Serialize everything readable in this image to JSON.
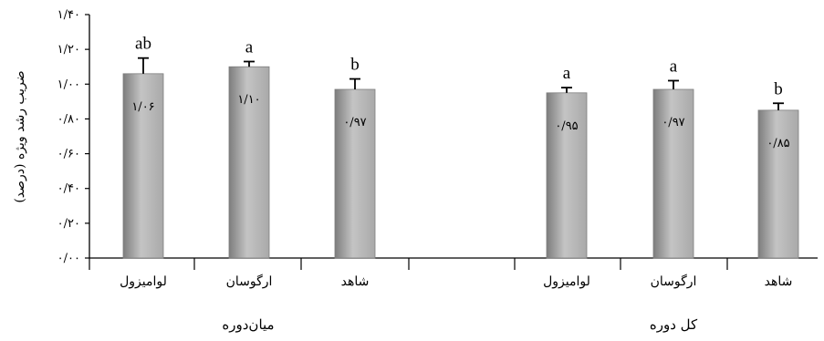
{
  "chart_data": {
    "type": "bar",
    "ylabel": "ضریب رشد ویژه (درصد)",
    "ylim": [
      0,
      1.4
    ],
    "yticks": [
      0,
      0.2,
      0.4,
      0.6,
      0.8,
      1.0,
      1.2,
      1.4
    ],
    "ytick_labels": [
      "۰/۰۰",
      "۰/۲۰",
      "۰/۴۰",
      "۰/۶۰",
      "۰/۸۰",
      "۱/۰۰",
      "۱/۲۰",
      "۱/۴۰"
    ],
    "groups": [
      {
        "label": "میان‌دوره",
        "bars": [
          {
            "category": "لوامیزول",
            "value": 1.06,
            "error": 0.09,
            "value_label": "۱/۰۶",
            "significance": "ab"
          },
          {
            "category": "ارگوسان",
            "value": 1.1,
            "error": 0.03,
            "value_label": "۱/۱۰",
            "significance": "a"
          },
          {
            "category": "شاهد",
            "value": 0.97,
            "error": 0.06,
            "value_label": "۰/۹۷",
            "significance": "b"
          }
        ]
      },
      {
        "label": "کل دوره",
        "bars": [
          {
            "category": "لوامیزول",
            "value": 0.95,
            "error": 0.03,
            "value_label": "۰/۹۵",
            "significance": "a"
          },
          {
            "category": "ارگوسان",
            "value": 0.97,
            "error": 0.05,
            "value_label": "۰/۹۷",
            "significance": "a"
          },
          {
            "category": "شاهد",
            "value": 0.85,
            "error": 0.04,
            "value_label": "۰/۸۵",
            "significance": "b"
          }
        ]
      }
    ],
    "colors": {
      "bar_fill": "#a9a9a9",
      "bar_edge": "#7d7d7d",
      "bar_highlight": "#c4c4c4"
    }
  }
}
